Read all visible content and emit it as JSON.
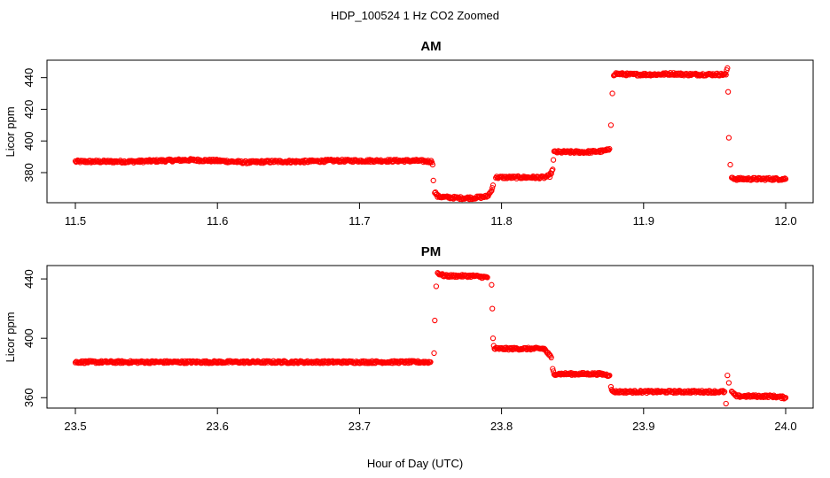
{
  "figure": {
    "title": "HDP_100524  1 Hz CO2 Zoomed",
    "xlabel": "Hour of Day (UTC)"
  },
  "colors": {
    "points": "#ff0000",
    "axes": "#000000",
    "background": "#ffffff"
  },
  "chart_data": [
    {
      "type": "scatter",
      "title": "AM",
      "ylabel": "Licor ppm",
      "xlim": [
        11.5,
        12.0
      ],
      "ylim": [
        361,
        451
      ],
      "xticks": [
        "11.5",
        "11.6",
        "11.7",
        "11.8",
        "11.9",
        "12.0"
      ],
      "yticks": [
        "380",
        "400",
        "420",
        "440"
      ],
      "grid": false,
      "series": [
        {
          "marker": "open-circle",
          "x": [
            11.5,
            11.52,
            11.54,
            11.56,
            11.58,
            11.6,
            11.62,
            11.64,
            11.66,
            11.68,
            11.7,
            11.72,
            11.74,
            11.751,
            11.7515,
            11.752,
            11.753,
            11.755,
            11.76,
            11.77,
            11.78,
            11.79,
            11.7925,
            11.794,
            11.796,
            11.8,
            11.81,
            11.82,
            11.83,
            11.834,
            11.836,
            11.8365,
            11.837,
            11.84,
            11.85,
            11.86,
            11.87,
            11.874,
            11.876,
            11.877,
            11.878,
            11.879,
            11.88,
            11.89,
            11.9,
            11.91,
            11.92,
            11.93,
            11.94,
            11.95,
            11.958,
            11.959,
            11.9595,
            11.96,
            11.961,
            11.962,
            11.965,
            11.97,
            11.98,
            11.99,
            12.0
          ],
          "y": [
            387,
            387,
            387,
            387.5,
            388,
            387.5,
            386.5,
            387,
            387,
            387.5,
            387.5,
            387.5,
            387.5,
            387,
            385,
            375,
            368,
            365,
            364.5,
            364,
            364,
            365,
            368,
            372,
            377,
            377,
            377,
            377,
            377,
            378,
            382,
            388,
            393,
            393,
            393,
            393,
            393.5,
            394,
            395,
            410,
            430,
            442,
            442.5,
            442,
            442,
            442,
            442.5,
            442,
            442,
            442,
            442,
            446,
            431,
            402,
            385,
            377,
            376,
            376,
            376,
            376,
            376
          ]
        }
      ]
    },
    {
      "type": "scatter",
      "title": "PM",
      "ylabel": "Licor ppm",
      "xlim": [
        23.5,
        24.0
      ],
      "ylim": [
        353,
        449
      ],
      "xticks": [
        "23.5",
        "23.6",
        "23.7",
        "23.8",
        "23.9",
        "24.0"
      ],
      "yticks": [
        "360",
        "400",
        "440"
      ],
      "grid": false,
      "series": [
        {
          "marker": "open-circle",
          "x": [
            23.5,
            23.52,
            23.54,
            23.56,
            23.58,
            23.6,
            23.62,
            23.64,
            23.66,
            23.68,
            23.7,
            23.72,
            23.74,
            23.75,
            23.7525,
            23.753,
            23.754,
            23.755,
            23.76,
            23.77,
            23.78,
            23.79,
            23.793,
            23.7935,
            23.794,
            23.7945,
            23.795,
            23.8,
            23.81,
            23.82,
            23.83,
            23.835,
            23.836,
            23.837,
            23.84,
            23.85,
            23.86,
            23.87,
            23.876,
            23.877,
            23.878,
            23.88,
            23.89,
            23.9,
            23.91,
            23.92,
            23.93,
            23.94,
            23.95,
            23.957,
            23.958,
            23.959,
            23.96,
            23.962,
            23.965,
            23.97,
            23.98,
            23.99,
            24.0
          ],
          "y": [
            384,
            384,
            384,
            384,
            384,
            384,
            384,
            384,
            384,
            384,
            384,
            384,
            384,
            384,
            390,
            412,
            435,
            444,
            442,
            442,
            442,
            441,
            436,
            420,
            400,
            395,
            393,
            393,
            393,
            393,
            393,
            387,
            379,
            376,
            376,
            376,
            376,
            376,
            375,
            368,
            364,
            364,
            364,
            364,
            364,
            364,
            364,
            364,
            364,
            364,
            356,
            375,
            370,
            364,
            361,
            361,
            361,
            361,
            360
          ]
        }
      ]
    }
  ]
}
